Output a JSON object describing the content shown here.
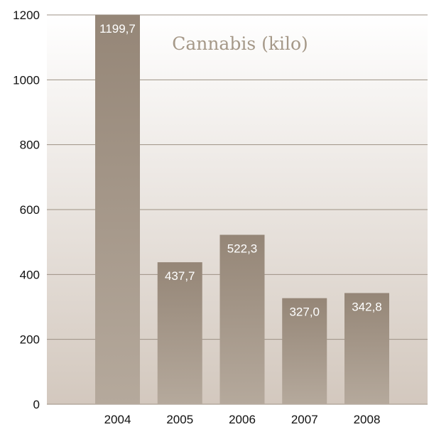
{
  "chart_data": {
    "type": "bar",
    "title": "Cannabis (kilo)",
    "categories": [
      "2004",
      "2005",
      "2006",
      "2007",
      "2008"
    ],
    "values": [
      1199.7,
      437.7,
      522.3,
      327.0,
      342.8
    ],
    "data_labels": [
      "1199,7",
      "437,7",
      "522,3",
      "327,0",
      "342,8"
    ],
    "xlabel": "",
    "ylabel": "",
    "ylim": [
      0,
      1200
    ],
    "yticks": [
      0,
      200,
      400,
      600,
      800,
      1000,
      1200
    ],
    "grid": true,
    "legend": "none",
    "colors": {
      "bar_top": "#958677",
      "bar_bottom": "#b5a99c",
      "plot_bg_top": "#ffffff",
      "plot_bg_bottom": "#d3c8be",
      "gridline": "#9d9184",
      "title": "#a59888"
    }
  }
}
